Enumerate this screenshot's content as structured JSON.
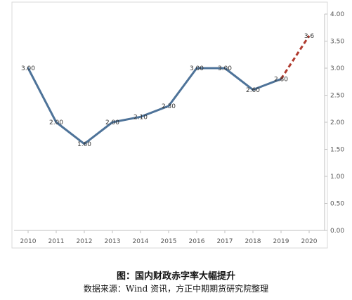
{
  "caption": {
    "title": "图：国内财政赤字率大幅提升",
    "source": "数据来源：Wind 资讯，方正中期期货研究院整理"
  },
  "chart_data": {
    "type": "line",
    "categories": [
      "2010",
      "2011",
      "2012",
      "2013",
      "2014",
      "2015",
      "2016",
      "2017",
      "2018",
      "2019",
      "2020"
    ],
    "values": [
      3.0,
      2.0,
      1.6,
      2.0,
      2.1,
      2.3,
      3.0,
      3.0,
      2.6,
      2.8,
      3.6
    ],
    "data_labels": [
      "3.00",
      "2.00",
      "1.60",
      "2.00",
      "2.10",
      "2.30",
      "3.00",
      "3.00",
      "2.60",
      "2.80",
      "3.6"
    ],
    "projected_from_index": 9,
    "y_ticks": [
      "0.00",
      "0.50",
      "1.00",
      "1.50",
      "2.00",
      "2.50",
      "3.00",
      "3.50",
      "4.00"
    ],
    "ylim": [
      0,
      4
    ],
    "y_axis_position": "right",
    "grid": false,
    "title": "",
    "xlabel": "",
    "ylabel": "",
    "colors": {
      "actual": "#4e7399",
      "projected": "#b03a2e",
      "border": "#d9d9d9",
      "axis": "#bfbfbf"
    }
  }
}
